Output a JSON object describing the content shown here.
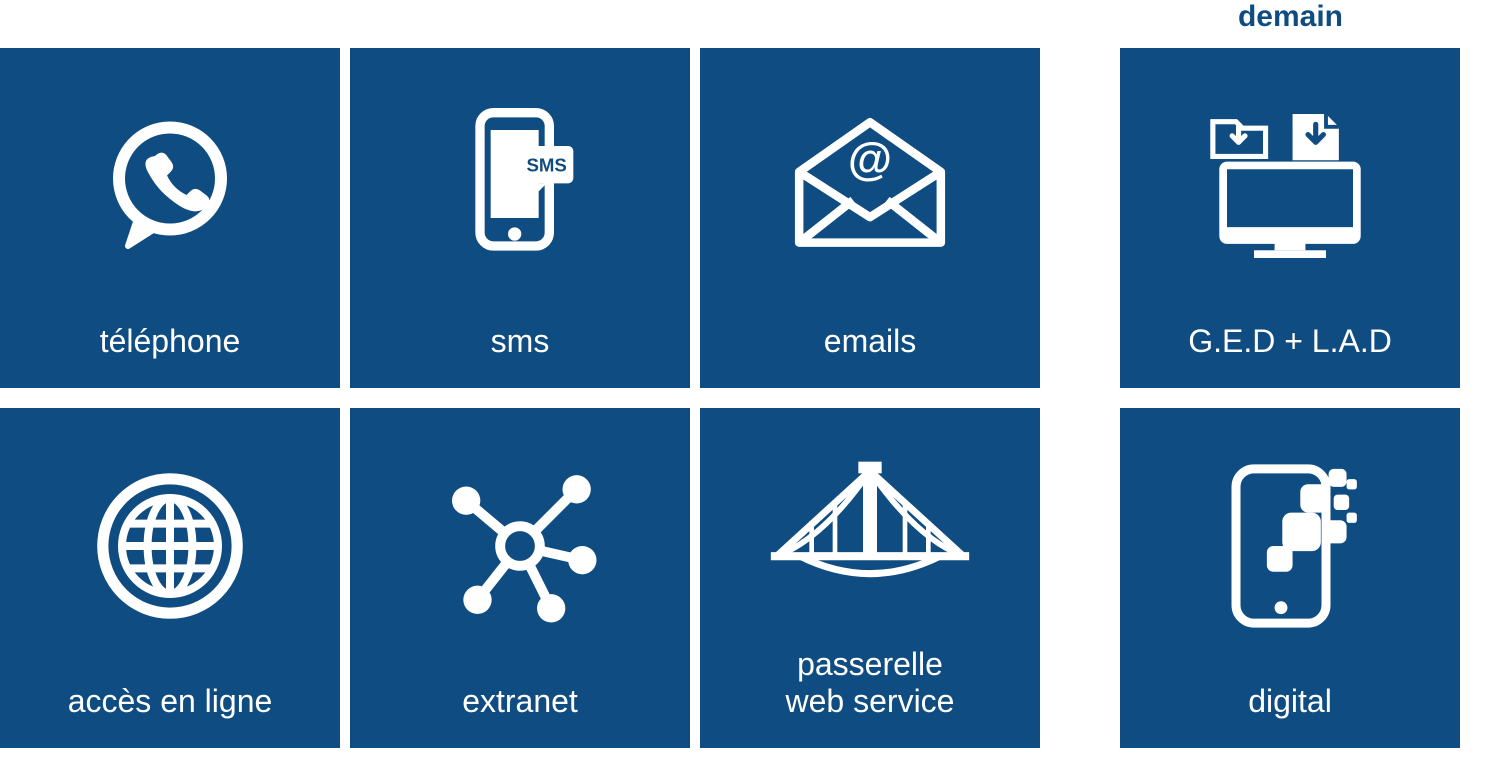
{
  "colors": {
    "tile_bg": "#0f4c81",
    "tile_fg": "#ffffff",
    "header_text": "#0f4c81"
  },
  "header": {
    "label": "demain"
  },
  "tiles": [
    {
      "id": "telephone",
      "label": "téléphone",
      "icon": "phone-bubble-icon",
      "gap_before": false
    },
    {
      "id": "sms",
      "label": "sms",
      "icon": "sms-phone-icon",
      "gap_before": false
    },
    {
      "id": "emails",
      "label": "emails",
      "icon": "email-at-icon",
      "gap_before": false
    },
    {
      "id": "ged-lad",
      "label": "G.E.D + L.A.D",
      "icon": "ged-monitor-icon",
      "gap_before": true
    },
    {
      "id": "acces-en-ligne",
      "label": "accès en ligne",
      "icon": "globe-icon",
      "gap_before": false
    },
    {
      "id": "extranet",
      "label": "extranet",
      "icon": "network-hub-icon",
      "gap_before": false
    },
    {
      "id": "passerelle",
      "label": "passerelle\nweb service",
      "icon": "bridge-icon",
      "gap_before": false
    },
    {
      "id": "digital",
      "label": "digital",
      "icon": "digital-squares-icon",
      "gap_before": true
    }
  ]
}
